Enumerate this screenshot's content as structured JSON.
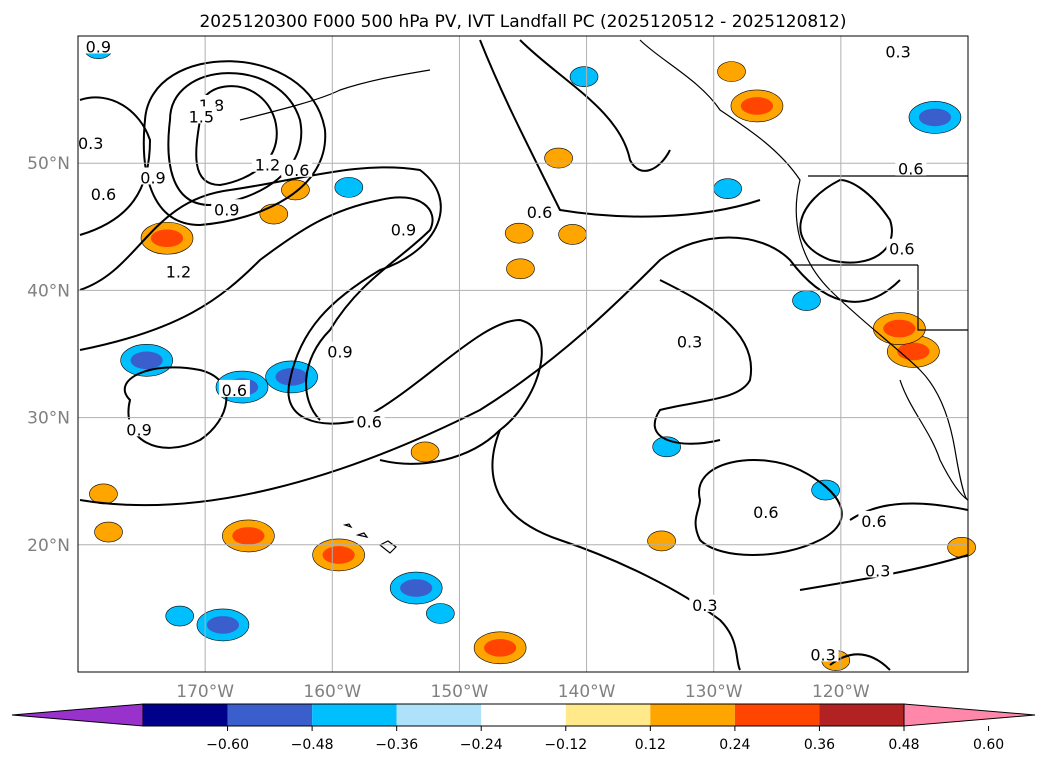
{
  "title": "2025120300 F000 500 hPa PV, IVT Landfall PC (2025120512 - 2025120812)",
  "map": {
    "lon_range": [
      -180,
      -110
    ],
    "lat_range": [
      10,
      60
    ],
    "lon_ticks": [
      {
        "lon": -170,
        "label": "170°W"
      },
      {
        "lon": -160,
        "label": "160°W"
      },
      {
        "lon": -150,
        "label": "150°W"
      },
      {
        "lon": -140,
        "label": "140°W"
      },
      {
        "lon": -130,
        "label": "130°W"
      },
      {
        "lon": -120,
        "label": "120°W"
      }
    ],
    "lat_ticks": [
      {
        "lat": 20,
        "label": "20°N"
      },
      {
        "lat": 30,
        "label": "30°N"
      },
      {
        "lat": 40,
        "label": "40°N"
      },
      {
        "lat": 50,
        "label": "50°N"
      }
    ],
    "grid": true
  },
  "colorbar": {
    "ticks": [
      "−0.60",
      "−0.48",
      "−0.36",
      "−0.24",
      "−0.12",
      "0.12",
      "0.24",
      "0.36",
      "0.48",
      "0.60"
    ],
    "colors": [
      "#9932cc",
      "#00008b",
      "#3a5fcd",
      "#00bfff",
      "#aee2fa",
      "#ffffff",
      "#ffe98a",
      "#ffa500",
      "#ff4500",
      "#b22222",
      "#ff88aa"
    ]
  },
  "contour_labels": [
    {
      "text": "0.9",
      "lon": -178.4,
      "lat": 59.1
    },
    {
      "text": "1.8",
      "lon": -169.5,
      "lat": 54.5
    },
    {
      "text": "1.5",
      "lon": -170.3,
      "lat": 53.6
    },
    {
      "text": "0.3",
      "lon": -179.0,
      "lat": 51.5
    },
    {
      "text": "0.9",
      "lon": -174.1,
      "lat": 48.8
    },
    {
      "text": "1.2",
      "lon": -165.1,
      "lat": 49.8
    },
    {
      "text": "0.6",
      "lon": -162.8,
      "lat": 49.4
    },
    {
      "text": "0.6",
      "lon": -178.0,
      "lat": 47.5
    },
    {
      "text": "0.9",
      "lon": -168.3,
      "lat": 46.3
    },
    {
      "text": "1.2",
      "lon": -172.1,
      "lat": 41.4
    },
    {
      "text": "0.9",
      "lon": -154.4,
      "lat": 44.7
    },
    {
      "text": "0.6",
      "lon": -143.7,
      "lat": 46.1
    },
    {
      "text": "0.6",
      "lon": -114.5,
      "lat": 49.5
    },
    {
      "text": "0.6",
      "lon": -115.2,
      "lat": 43.2
    },
    {
      "text": "0.3",
      "lon": -115.5,
      "lat": 58.7
    },
    {
      "text": "0.9",
      "lon": -159.4,
      "lat": 35.1
    },
    {
      "text": "0.6",
      "lon": -167.7,
      "lat": 32.1
    },
    {
      "text": "0.6",
      "lon": -157.1,
      "lat": 29.6
    },
    {
      "text": "0.9",
      "lon": -175.2,
      "lat": 29.0
    },
    {
      "text": "0.3",
      "lon": -131.9,
      "lat": 35.9
    },
    {
      "text": "0.6",
      "lon": -125.9,
      "lat": 22.5
    },
    {
      "text": "0.6",
      "lon": -117.4,
      "lat": 21.8
    },
    {
      "text": "0.3",
      "lon": -130.7,
      "lat": 15.2
    },
    {
      "text": "0.3",
      "lon": -117.1,
      "lat": 17.9
    },
    {
      "text": "0.3",
      "lon": -121.4,
      "lat": 11.3
    }
  ],
  "shaded_regions": [
    {
      "level": 0.36,
      "lon": -173.0,
      "lat": 44.1
    },
    {
      "level": 0.36,
      "lon": -114.3,
      "lat": 35.2
    },
    {
      "level": 0.36,
      "lon": -159.5,
      "lat": 19.2
    },
    {
      "level": 0.36,
      "lon": -166.6,
      "lat": 20.7
    },
    {
      "level": 0.36,
      "lon": -146.8,
      "lat": 11.9
    },
    {
      "level": 0.36,
      "lon": -126.6,
      "lat": 54.5
    },
    {
      "level": 0.36,
      "lon": -115.4,
      "lat": 37.0
    },
    {
      "level": 0.24,
      "lon": -145.3,
      "lat": 44.5
    },
    {
      "level": 0.24,
      "lon": -164.6,
      "lat": 46.0
    },
    {
      "level": 0.24,
      "lon": -178.0,
      "lat": 24.0
    },
    {
      "level": 0.24,
      "lon": -177.6,
      "lat": 21.0
    },
    {
      "level": 0.24,
      "lon": -128.6,
      "lat": 57.2
    },
    {
      "level": 0.24,
      "lon": -141.1,
      "lat": 44.4
    },
    {
      "level": 0.24,
      "lon": -162.9,
      "lat": 47.9
    },
    {
      "level": 0.24,
      "lon": -142.2,
      "lat": 50.4
    },
    {
      "level": 0.24,
      "lon": -152.7,
      "lat": 27.3
    },
    {
      "level": 0.24,
      "lon": -145.2,
      "lat": 41.7
    },
    {
      "level": 0.24,
      "lon": -134.1,
      "lat": 20.3
    },
    {
      "level": 0.24,
      "lon": -120.4,
      "lat": 10.9
    },
    {
      "level": 0.24,
      "lon": -110.5,
      "lat": 19.8
    },
    {
      "level": -0.36,
      "lon": -112.6,
      "lat": 53.6
    },
    {
      "level": -0.36,
      "lon": -163.2,
      "lat": 33.2
    },
    {
      "level": -0.36,
      "lon": -168.6,
      "lat": 13.7
    },
    {
      "level": -0.36,
      "lon": -153.4,
      "lat": 16.6
    },
    {
      "level": -0.36,
      "lon": -167.1,
      "lat": 32.4
    },
    {
      "level": -0.36,
      "lon": -174.6,
      "lat": 34.5
    },
    {
      "level": -0.24,
      "lon": -128.9,
      "lat": 48.0
    },
    {
      "level": -0.24,
      "lon": -121.2,
      "lat": 24.3
    },
    {
      "level": -0.24,
      "lon": -140.2,
      "lat": 56.8
    },
    {
      "level": -0.24,
      "lon": -172.0,
      "lat": 14.4
    },
    {
      "level": -0.24,
      "lon": -151.5,
      "lat": 14.6
    },
    {
      "level": -0.24,
      "lon": -178.4,
      "lat": 59.0
    },
    {
      "level": -0.24,
      "lon": -158.7,
      "lat": 48.1
    },
    {
      "level": -0.24,
      "lon": -133.7,
      "lat": 27.7
    },
    {
      "level": -0.24,
      "lon": -122.7,
      "lat": 39.2
    }
  ],
  "colors": {
    "land_outline": "#000000",
    "grid": "#b0b0b0",
    "tick_label": "#808080"
  }
}
